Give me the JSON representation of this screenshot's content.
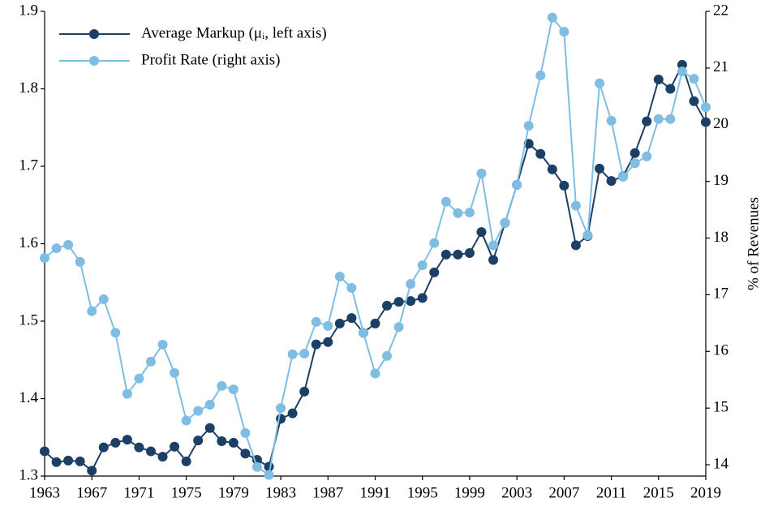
{
  "chart_data": {
    "type": "line",
    "x": [
      1963,
      1964,
      1965,
      1966,
      1967,
      1968,
      1969,
      1970,
      1971,
      1972,
      1973,
      1974,
      1975,
      1976,
      1977,
      1978,
      1979,
      1980,
      1981,
      1982,
      1983,
      1984,
      1985,
      1986,
      1987,
      1988,
      1989,
      1990,
      1991,
      1992,
      1993,
      1994,
      1995,
      1996,
      1997,
      1998,
      1999,
      2000,
      2001,
      2002,
      2003,
      2004,
      2005,
      2006,
      2007,
      2008,
      2009,
      2010,
      2011,
      2012,
      2013,
      2014,
      2015,
      2016,
      2017,
      2018,
      2019
    ],
    "series": [
      {
        "name": "Average Markup  (μᵢ, left axis)",
        "color": "#1c3f66",
        "values": [
          1.332,
          1.318,
          1.32,
          1.319,
          1.307,
          1.337,
          1.343,
          1.347,
          1.337,
          1.332,
          1.325,
          1.338,
          1.319,
          1.346,
          1.362,
          1.345,
          1.343,
          1.329,
          1.321,
          1.312,
          1.374,
          1.381,
          1.409,
          1.47,
          1.473,
          1.497,
          1.504,
          1.485,
          1.497,
          1.52,
          1.525,
          1.526,
          1.53,
          1.563,
          1.586,
          1.586,
          1.588,
          1.615,
          1.579,
          1.627,
          1.676,
          1.729,
          1.716,
          1.696,
          1.675,
          1.598,
          1.61,
          1.697,
          1.681,
          1.687,
          1.717,
          1.758,
          1.812,
          1.8,
          1.831,
          1.784,
          1.757
        ]
      },
      {
        "name": "Profit Rate (right axis)",
        "color": "#80bde3",
        "axis": "y2",
        "values": [
          17.65,
          17.82,
          17.88,
          17.58,
          16.71,
          16.92,
          16.33,
          15.25,
          15.52,
          15.82,
          16.12,
          15.62,
          14.78,
          14.95,
          15.06,
          15.39,
          15.33,
          14.56,
          13.96,
          13.82,
          15.0,
          15.95,
          15.96,
          16.52,
          16.45,
          17.32,
          17.12,
          16.33,
          15.61,
          15.92,
          16.43,
          17.19,
          17.52,
          17.91,
          18.64,
          18.44,
          18.45,
          19.14,
          17.87,
          18.27,
          18.94,
          19.98,
          20.87,
          21.89,
          21.64,
          18.57,
          18.05,
          20.73,
          20.07,
          19.08,
          19.32,
          19.44,
          20.1,
          20.1,
          20.94,
          20.81,
          20.31
        ]
      }
    ],
    "xlim": [
      1963,
      2019
    ],
    "xticks": [
      1963,
      1967,
      1971,
      1975,
      1979,
      1983,
      1987,
      1991,
      1995,
      1999,
      2003,
      2007,
      2011,
      2015,
      2019
    ],
    "ylim": [
      1.3,
      1.9
    ],
    "yticks": [
      1.3,
      1.4,
      1.5,
      1.6,
      1.7,
      1.8,
      1.9
    ],
    "y2lim": [
      13.8,
      22
    ],
    "y2ticks": [
      14,
      15,
      16,
      17,
      18,
      19,
      20,
      21,
      22
    ],
    "y2label": "% of Revenues",
    "legend": "upper left"
  }
}
